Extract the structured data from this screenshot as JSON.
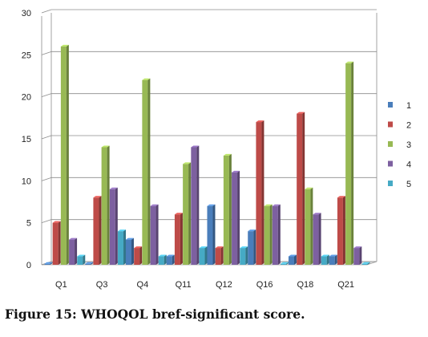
{
  "caption": "Figure 15: WHOQOL bref-significant score.",
  "chart_data": {
    "type": "bar",
    "title": "",
    "xlabel": "",
    "ylabel": "",
    "ylim": [
      0,
      30
    ],
    "yticks": [
      "0",
      "5",
      "10",
      "15",
      "20",
      "25",
      "30"
    ],
    "grid": true,
    "legend_position": "right",
    "categories": [
      "Q1",
      "Q3",
      "Q4",
      "Q11",
      "Q12",
      "Q16",
      "Q18",
      "Q21"
    ],
    "series": [
      {
        "name": "1",
        "color": "#4a7ebb",
        "values": [
          0,
          0,
          3,
          1,
          7,
          4,
          1,
          1
        ]
      },
      {
        "name": "2",
        "color": "#be4b48",
        "values": [
          5,
          8,
          2,
          6,
          2,
          17,
          18,
          8
        ]
      },
      {
        "name": "3",
        "color": "#98b954",
        "values": [
          26,
          14,
          22,
          12,
          13,
          7,
          9,
          24
        ]
      },
      {
        "name": "4",
        "color": "#7d60a0",
        "values": [
          3,
          9,
          7,
          14,
          11,
          7,
          6,
          2
        ]
      },
      {
        "name": "5",
        "color": "#46aac5",
        "values": [
          1,
          4,
          1,
          2,
          2,
          0,
          1,
          0
        ]
      }
    ]
  }
}
